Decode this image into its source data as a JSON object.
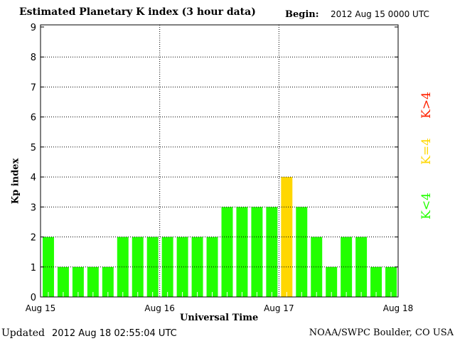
{
  "chart_data": {
    "type": "bar",
    "title": "Estimated Planetary K index (3 hour data)",
    "begin_label": "Begin:",
    "begin_value": "2012 Aug 15 0000 UTC",
    "xlabel": "Universal Time",
    "ylabel": "Kp index",
    "ylim": [
      0,
      9
    ],
    "yticks": [
      "0",
      "1",
      "2",
      "3",
      "4",
      "5",
      "6",
      "7",
      "8",
      "9"
    ],
    "xticks": [
      "Aug 15",
      "Aug 16",
      "Aug 17",
      "Aug 18"
    ],
    "values": [
      2,
      1,
      1,
      1,
      1,
      2,
      2,
      2,
      2,
      2,
      2,
      2,
      3,
      3,
      3,
      3,
      4,
      3,
      2,
      1,
      2,
      2,
      1,
      1
    ],
    "legend": [
      {
        "label": "K<4",
        "color": "#22ff00"
      },
      {
        "label": "K=4",
        "color": "#ffd700"
      },
      {
        "label": "K>4",
        "color": "#ff2200"
      }
    ]
  },
  "footer": {
    "updated_label": "Updated",
    "updated_value": "2012 Aug 18 02:55:04 UTC",
    "source": "NOAA/SWPC Boulder, CO USA"
  }
}
